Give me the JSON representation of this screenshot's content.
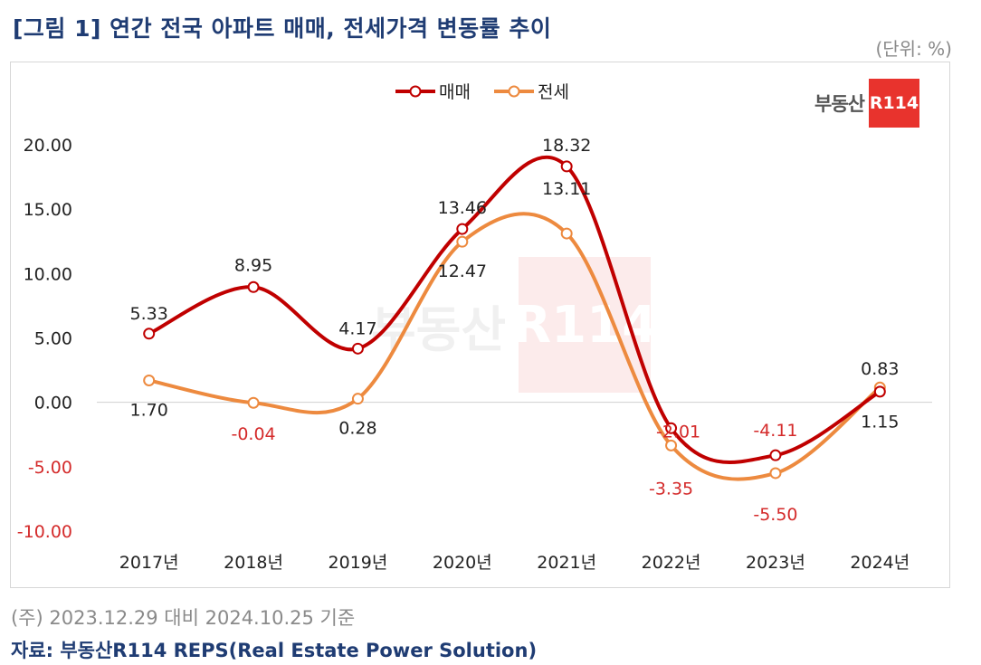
{
  "header": {
    "title": "[그림 1] 연간 전국 아파트 매매, 전세가격 변동률 추이",
    "unit": "(단위: %)"
  },
  "footer": {
    "note": "(주) 2023.12.29 대비 2024.10.25 기준",
    "source": "자료: 부동산R114 REPS(Real Estate Power Solution)"
  },
  "logo": {
    "text": "부동산",
    "box": "R114"
  },
  "watermark": {
    "text": "부동산",
    "box": "R114"
  },
  "colors": {
    "sale": "#c00000",
    "jeonse": "#ed8a3f",
    "negative": "#d42a2a",
    "title": "#1f3c73"
  },
  "chart_data": {
    "type": "line",
    "title": "연간 전국 아파트 매매, 전세가격 변동률 추이",
    "xlabel": "",
    "ylabel": "",
    "categories": [
      "2017년",
      "2018년",
      "2019년",
      "2020년",
      "2021년",
      "2022년",
      "2023년",
      "2024년"
    ],
    "ylim": [
      -10,
      20
    ],
    "yticks": [
      -10,
      -5,
      0,
      5,
      10,
      15,
      20
    ],
    "ytick_labels": [
      "-10.00",
      "-5.00",
      "0.00",
      "5.00",
      "10.00",
      "15.00",
      "20.00"
    ],
    "legend": "top-center",
    "smooth": true,
    "series": [
      {
        "name": "매매",
        "color": "#c00000",
        "values": [
          5.33,
          8.95,
          4.17,
          13.46,
          18.32,
          -2.01,
          -4.11,
          0.83
        ],
        "labels": [
          "5.33",
          "8.95",
          "4.17",
          "13.46",
          "18.32",
          "-2.01",
          "-4.11",
          "0.83"
        ]
      },
      {
        "name": "전세",
        "color": "#ed8a3f",
        "values": [
          1.7,
          -0.04,
          0.28,
          12.47,
          13.11,
          -3.35,
          -5.5,
          1.15
        ],
        "labels": [
          "1.70",
          "-0.04",
          "0.28",
          "12.47",
          "13.11",
          "-3.35",
          "-5.50",
          "1.15"
        ]
      }
    ]
  }
}
